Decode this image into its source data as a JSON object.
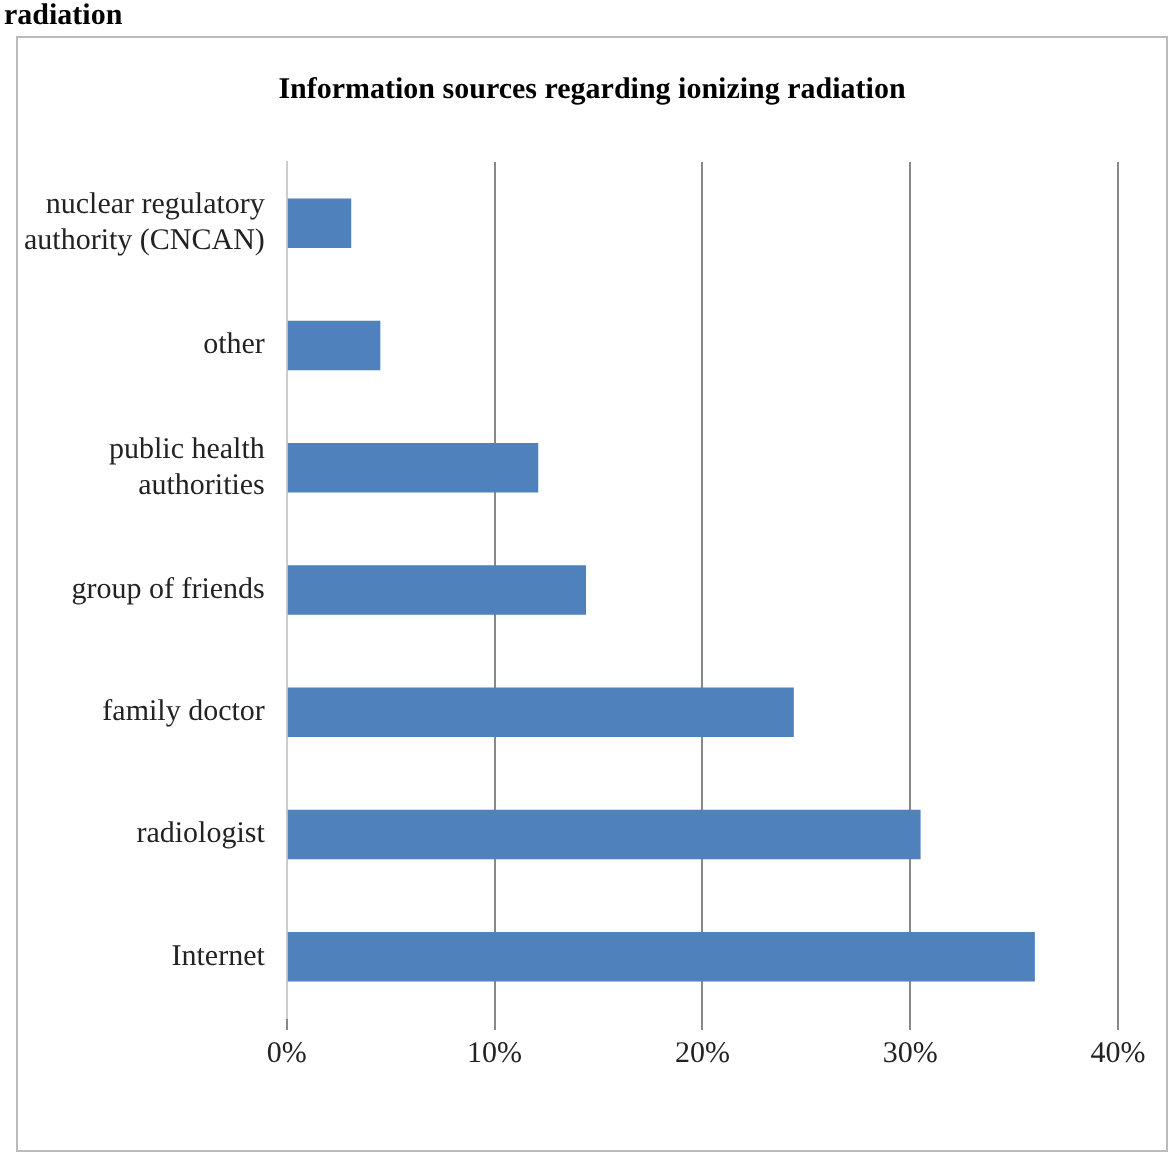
{
  "chart_data": {
    "type": "bar",
    "orientation": "horizontal",
    "title": "Information sources regarding ionizing radiation",
    "annotations": [
      "radiation"
    ],
    "categories": [
      "nuclear regulatory authority (CNCAN)",
      "other",
      "public health authorities",
      "group of friends",
      "family doctor",
      "radiologist",
      "Internet"
    ],
    "values": [
      3.1,
      4.5,
      12.1,
      14.4,
      24.4,
      30.5,
      36.0
    ],
    "color": "#4f81bd",
    "xlim": [
      0,
      40
    ],
    "xticks": [
      {
        "value": 0,
        "label": "0%"
      },
      {
        "value": 10,
        "label": "10%"
      },
      {
        "value": 20,
        "label": "20%"
      },
      {
        "value": 30,
        "label": "30%"
      },
      {
        "value": 40,
        "label": "40%"
      }
    ],
    "grid": "x",
    "legend": false
  }
}
